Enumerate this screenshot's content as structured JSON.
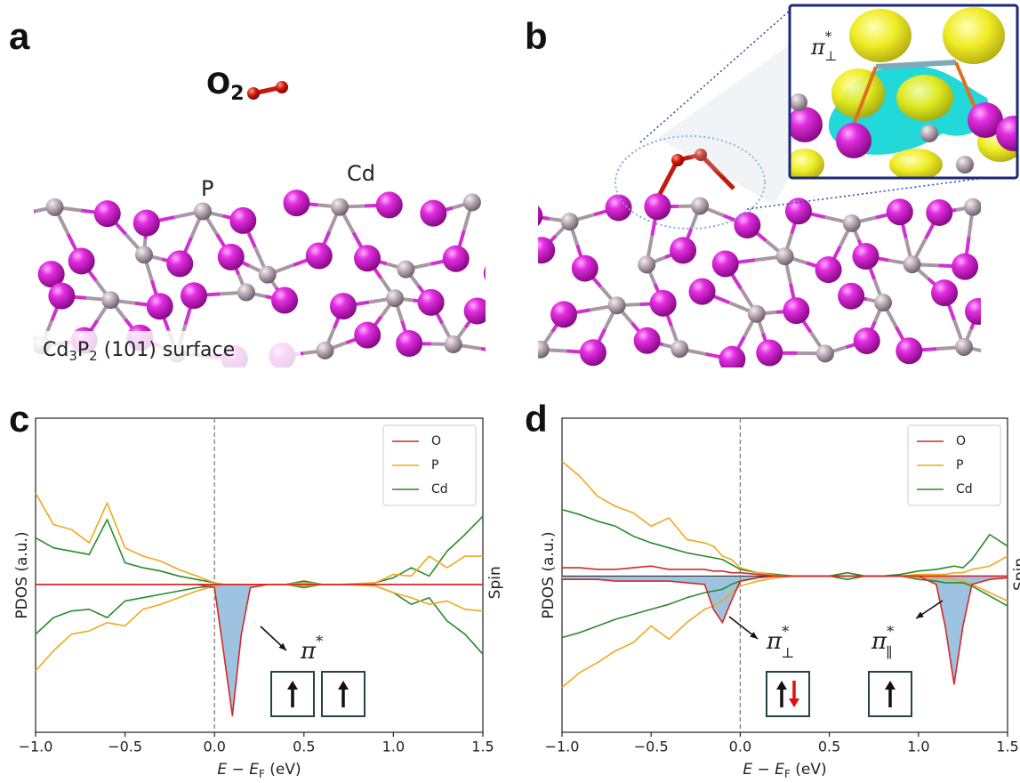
{
  "panel_a": {
    "letter": "a",
    "molecule": {
      "main": "O",
      "sub": "2"
    },
    "atom_labels": [
      "P",
      "Cd"
    ],
    "surface_label": {
      "parts": [
        "Cd",
        "3",
        "P",
        "2",
        " (101) surface"
      ]
    }
  },
  "panel_b": {
    "letter": "b",
    "inset_label": {
      "main": "π",
      "sup": "*",
      "sub": "⊥"
    }
  },
  "chart_data": [
    {
      "type": "line",
      "letter": "c",
      "ylabel": "PDOS (a.u.)",
      "side_label": "Spin",
      "xlabel": {
        "var": "E",
        "op": " − ",
        "var2": "E",
        "sub": "F",
        "unit": " (eV)"
      },
      "x": [
        -1.0,
        -0.9,
        -0.8,
        -0.7,
        -0.6,
        -0.5,
        -0.4,
        -0.3,
        -0.2,
        -0.1,
        0,
        0.05,
        0.1,
        0.15,
        0.2,
        0.3,
        0.4,
        0.5,
        0.6,
        0.7,
        0.8,
        0.9,
        1.0,
        1.1,
        1.2,
        1.3,
        1.4,
        1.5
      ],
      "series": [
        {
          "name": "O",
          "color": "#d62728",
          "values": [
            0,
            0,
            0,
            0,
            0,
            0,
            0,
            0,
            0,
            0,
            0,
            0,
            0,
            0,
            0,
            0,
            0,
            0,
            0,
            0,
            0,
            0,
            0,
            0,
            0,
            0,
            0,
            0
          ],
          "values_down": [
            0,
            0,
            0,
            0,
            0,
            0,
            0,
            0,
            0,
            0,
            -0.02,
            -0.4,
            -0.79,
            -0.3,
            -0.02,
            0,
            0,
            0,
            0,
            0,
            0,
            0,
            0,
            0,
            0,
            0,
            0,
            0
          ]
        },
        {
          "name": "P",
          "color": "#f0a81e",
          "values": [
            0.55,
            0.36,
            0.33,
            0.25,
            0.49,
            0.22,
            0.17,
            0.14,
            0.09,
            0.05,
            0.01,
            0,
            0,
            0,
            0,
            0,
            0,
            0.01,
            0,
            0,
            0.005,
            0.01,
            0.06,
            0.05,
            0.17,
            0.1,
            0.17,
            0.17
          ],
          "values_down": [
            -0.52,
            -0.4,
            -0.3,
            -0.28,
            -0.23,
            -0.25,
            -0.15,
            -0.12,
            -0.08,
            -0.04,
            -0.01,
            0,
            0,
            0,
            0,
            0,
            0,
            -0.01,
            0,
            0,
            -0.005,
            -0.01,
            -0.05,
            -0.08,
            -0.12,
            -0.1,
            -0.15,
            -0.16
          ]
        },
        {
          "name": "Cd",
          "color": "#2a8a2a",
          "values": [
            0.28,
            0.22,
            0.2,
            0.18,
            0.39,
            0.13,
            0.1,
            0.08,
            0.05,
            0.03,
            0.01,
            0,
            0,
            0,
            0,
            0,
            0,
            0.02,
            0,
            0,
            0,
            0.01,
            0.04,
            0.1,
            0.05,
            0.2,
            0.3,
            0.41
          ],
          "values_down": [
            -0.3,
            -0.2,
            -0.16,
            -0.15,
            -0.2,
            -0.1,
            -0.08,
            -0.06,
            -0.04,
            -0.02,
            -0.01,
            0,
            0,
            0,
            0,
            0,
            0,
            -0.02,
            0,
            0,
            0,
            -0.01,
            -0.05,
            -0.12,
            -0.08,
            -0.22,
            -0.3,
            -0.42
          ]
        }
      ],
      "shade_color": "#9ec3e0",
      "vline": 0,
      "xlim": [
        -1.0,
        1.5
      ],
      "ylim": [
        -0.89,
        1.0
      ],
      "xticks": [
        {
          "value": -1.0,
          "label": "−1.0"
        },
        {
          "value": -0.5,
          "label": "−0.5"
        },
        {
          "value": 0,
          "label": "0.0"
        },
        0.5,
        {
          "value": 1.0,
          "label": "1.0"
        },
        1.5
      ],
      "legend": "upper right",
      "annotations": [
        {
          "main": "π",
          "sup": "*"
        }
      ]
    },
    {
      "type": "line",
      "letter": "d",
      "ylabel": "PDOS (a.u.)",
      "side_label": "Spin",
      "xlabel": {
        "var": "E",
        "op": " − ",
        "var2": "E",
        "sub": "F",
        "unit": " (eV)"
      },
      "x": [
        -1.0,
        -0.9,
        -0.8,
        -0.7,
        -0.6,
        -0.5,
        -0.4,
        -0.3,
        -0.2,
        -0.15,
        -0.1,
        -0.05,
        0,
        0.1,
        0.2,
        0.3,
        0.4,
        0.5,
        0.6,
        0.7,
        0.8,
        0.9,
        1.0,
        1.1,
        1.15,
        1.2,
        1.25,
        1.3,
        1.4,
        1.5
      ],
      "series": [
        {
          "name": "O",
          "color": "#d62728",
          "values": [
            0.05,
            0.05,
            0.04,
            0.04,
            0.05,
            0.06,
            0.04,
            0.04,
            0.04,
            0.03,
            0.03,
            0.02,
            0.02,
            0.01,
            0,
            0,
            0,
            0,
            0,
            0,
            0,
            0,
            0,
            0,
            0,
            0,
            0,
            0,
            0,
            0
          ],
          "values_down": [
            -0.02,
            -0.02,
            -0.02,
            -0.03,
            -0.03,
            -0.03,
            -0.03,
            -0.04,
            -0.05,
            -0.2,
            -0.28,
            -0.15,
            -0.03,
            -0.01,
            0,
            0,
            0,
            0,
            0,
            0,
            0,
            0,
            0,
            -0.05,
            -0.3,
            -0.65,
            -0.3,
            -0.05,
            -0.02,
            -0.01
          ]
        },
        {
          "name": "P",
          "color": "#f0a81e",
          "values": [
            0.69,
            0.6,
            0.48,
            0.42,
            0.38,
            0.3,
            0.35,
            0.22,
            0.2,
            0.18,
            0.12,
            0.1,
            0.05,
            0.02,
            0.005,
            0,
            0,
            0,
            0,
            0,
            0,
            0,
            0.01,
            0.01,
            0.01,
            0.02,
            0.02,
            0.04,
            0.06,
            0.12
          ],
          "values_down": [
            -0.67,
            -0.58,
            -0.52,
            -0.45,
            -0.4,
            -0.3,
            -0.38,
            -0.28,
            -0.2,
            -0.18,
            -0.15,
            -0.1,
            -0.06,
            -0.03,
            -0.01,
            0,
            0,
            0,
            0,
            0,
            0,
            0,
            -0.01,
            -0.01,
            -0.01,
            -0.02,
            -0.03,
            -0.05,
            -0.1,
            -0.15
          ]
        },
        {
          "name": "Cd",
          "color": "#2a8a2a",
          "values": [
            0.4,
            0.37,
            0.33,
            0.3,
            0.24,
            0.2,
            0.17,
            0.14,
            0.12,
            0.11,
            0.1,
            0.07,
            0.04,
            0.02,
            0.01,
            0,
            0,
            0,
            0.02,
            0,
            0,
            0.01,
            0.03,
            0.04,
            0.05,
            0.06,
            0.05,
            0.1,
            0.25,
            0.18
          ],
          "values_down": [
            -0.37,
            -0.34,
            -0.3,
            -0.26,
            -0.23,
            -0.2,
            -0.17,
            -0.13,
            -0.1,
            -0.09,
            -0.08,
            -0.05,
            -0.03,
            -0.01,
            0,
            0,
            0,
            0,
            -0.02,
            0,
            0,
            0,
            -0.02,
            -0.03,
            -0.04,
            -0.04,
            -0.04,
            -0.06,
            -0.12,
            -0.18
          ]
        }
      ],
      "shade_color": "#9ec3e0",
      "vline": 0,
      "xlim": [
        -1.0,
        1.5
      ],
      "ylim": [
        -0.94,
        0.95
      ],
      "xticks": [
        {
          "value": -1.0,
          "label": "−1.0"
        },
        {
          "value": -0.5,
          "label": "−0.5"
        },
        {
          "value": 0,
          "label": "0.0"
        },
        0.5,
        {
          "value": 1.0,
          "label": "1.0"
        },
        1.5
      ],
      "legend": "upper right",
      "annotations": [
        {
          "main": "π",
          "sup": "*",
          "sub": "⊥"
        },
        {
          "main": "π",
          "sup": "*",
          "sub": "∥"
        }
      ]
    }
  ]
}
